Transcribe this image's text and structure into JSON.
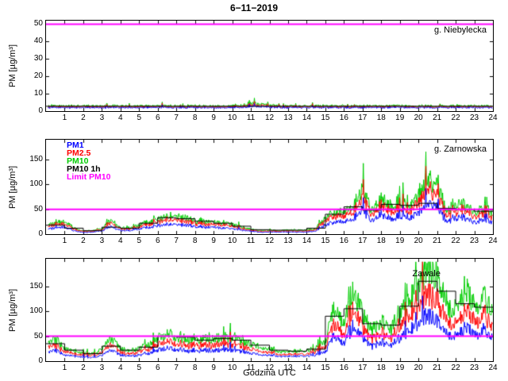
{
  "title": "6−11−2019",
  "xlabel": "Godzina UTC",
  "ylabel": "PM [µg/m³]",
  "colors": {
    "pm1": "#0000ff",
    "pm25": "#ff0000",
    "pm10": "#00cc00",
    "pm10_1h": "#000000",
    "limit": "#ff00ff"
  },
  "legend": [
    {
      "label": "PM1",
      "color": "#0000ff"
    },
    {
      "label": "PM2.5",
      "color": "#ff0000"
    },
    {
      "label": "PM10",
      "color": "#00cc00"
    },
    {
      "label": "PM10 1h",
      "color": "#000000"
    },
    {
      "label": "Limit PM10",
      "color": "#ff00ff"
    }
  ],
  "xticks": [
    1,
    2,
    3,
    4,
    5,
    6,
    7,
    8,
    9,
    10,
    11,
    12,
    13,
    14,
    15,
    16,
    17,
    18,
    19,
    20,
    21,
    22,
    23,
    24
  ],
  "chart_data": [
    {
      "type": "line",
      "station": "g. Niebylecka",
      "ylim": [
        0,
        52
      ],
      "yticks": [
        0,
        10,
        20,
        30,
        40,
        50
      ],
      "limit_value": 50,
      "anchor_step_hours": 0.5,
      "series": [
        {
          "name": "PM10",
          "color": "#00cc00",
          "values": [
            3,
            3,
            3,
            3,
            3,
            3,
            3,
            3,
            3,
            3,
            3,
            3,
            3,
            3,
            3,
            3,
            3,
            3,
            3,
            3,
            3,
            3.5,
            4.5,
            4,
            3.5,
            3,
            3,
            3,
            3,
            3,
            3,
            3,
            3,
            3,
            3,
            3,
            3,
            3,
            3,
            3,
            3,
            3,
            3,
            3,
            3,
            3,
            3,
            3,
            3
          ]
        },
        {
          "name": "PM2.5",
          "color": "#ff0000",
          "values": [
            2.5,
            2.5,
            2.5,
            2.5,
            2.5,
            2.5,
            2.5,
            2.5,
            2.5,
            2.5,
            2.5,
            2.5,
            2.5,
            2.5,
            2.5,
            2.5,
            2.5,
            2.5,
            2.5,
            2.5,
            2.5,
            2.8,
            3.5,
            3.2,
            2.8,
            2.5,
            2.5,
            2.5,
            2.5,
            2.5,
            2.5,
            2.5,
            2.5,
            2.5,
            2.5,
            2.5,
            2.5,
            2.5,
            2.5,
            2.5,
            2.5,
            2.5,
            2.5,
            2.5,
            2.5,
            2.5,
            2.5,
            2.5,
            2.5
          ]
        },
        {
          "name": "PM1",
          "color": "#0000ff",
          "values": [
            2,
            2,
            2,
            2,
            2,
            2,
            2,
            2,
            2,
            2,
            2,
            2,
            2,
            2,
            2,
            2,
            2,
            2,
            2,
            2,
            2,
            2.2,
            2.8,
            2.5,
            2.2,
            2,
            2,
            2,
            2,
            2,
            2,
            2,
            2,
            2,
            2,
            2,
            2,
            2,
            2,
            2,
            2,
            2,
            2,
            2,
            2,
            2,
            2,
            2,
            2
          ]
        }
      ],
      "pm10_1h_hourly": [
        2.8,
        2.8,
        2.8,
        2.8,
        2.8,
        2.8,
        2.8,
        2.8,
        2.8,
        2.8,
        2.8,
        2.8,
        2.8,
        2.8,
        2.8,
        2.8,
        2.8,
        2.8,
        2.8,
        2.8,
        2.8,
        2.8,
        2.8,
        2.8
      ]
    },
    {
      "type": "line",
      "station": "g. Zarnowska",
      "ylim": [
        0,
        190
      ],
      "yticks": [
        0,
        50,
        100,
        150
      ],
      "limit_value": 50,
      "anchor_step_hours": 0.5,
      "series": [
        {
          "name": "PM10",
          "color": "#00cc00",
          "values": [
            18,
            22,
            25,
            12,
            6,
            7,
            10,
            30,
            12,
            12,
            18,
            25,
            30,
            36,
            35,
            32,
            27,
            25,
            25,
            22,
            20,
            14,
            10,
            8,
            8,
            7,
            8,
            8,
            8,
            12,
            32,
            42,
            48,
            55,
            95,
            45,
            75,
            55,
            68,
            58,
            75,
            120,
            100,
            48,
            55,
            62,
            45,
            52,
            45
          ]
        },
        {
          "name": "PM2.5",
          "color": "#ff0000",
          "values": [
            14,
            18,
            20,
            10,
            5,
            6,
            8,
            24,
            10,
            10,
            14,
            20,
            24,
            29,
            28,
            26,
            22,
            20,
            20,
            18,
            16,
            11,
            8,
            6,
            6,
            6,
            6,
            6,
            6,
            10,
            26,
            34,
            38,
            44,
            76,
            36,
            60,
            44,
            54,
            46,
            60,
            96,
            80,
            38,
            44,
            50,
            36,
            42,
            36
          ]
        },
        {
          "name": "PM1",
          "color": "#0000ff",
          "values": [
            10,
            12,
            14,
            7,
            3,
            4,
            6,
            16,
            7,
            7,
            10,
            14,
            16,
            20,
            19,
            18,
            15,
            14,
            14,
            12,
            11,
            8,
            6,
            4,
            4,
            4,
            4,
            4,
            4,
            7,
            18,
            23,
            26,
            30,
            52,
            25,
            41,
            30,
            37,
            32,
            41,
            66,
            55,
            26,
            30,
            34,
            25,
            29,
            25
          ]
        }
      ],
      "pm10_1h_hourly": [
        18,
        12,
        7,
        14,
        12,
        22,
        33,
        31,
        26,
        22,
        16,
        9,
        8,
        8,
        12,
        40,
        55,
        48,
        60,
        58,
        62,
        52,
        50,
        46
      ]
    },
    {
      "type": "line",
      "station": "Zawale",
      "ylim": [
        0,
        205
      ],
      "yticks": [
        0,
        50,
        100,
        150
      ],
      "limit_value": 50,
      "anchor_step_hours": 0.5,
      "series": [
        {
          "name": "PM10",
          "color": "#00cc00",
          "values": [
            32,
            45,
            26,
            20,
            16,
            15,
            22,
            48,
            24,
            20,
            26,
            32,
            46,
            55,
            50,
            46,
            40,
            46,
            42,
            50,
            46,
            40,
            34,
            28,
            24,
            20,
            20,
            20,
            20,
            26,
            40,
            110,
            70,
            140,
            95,
            60,
            85,
            60,
            100,
            130,
            150,
            185,
            170,
            120,
            100,
            140,
            110,
            130,
            95
          ]
        },
        {
          "name": "PM2.5",
          "color": "#ff0000",
          "values": [
            23,
            32,
            19,
            14,
            12,
            11,
            16,
            35,
            17,
            14,
            19,
            23,
            33,
            40,
            36,
            33,
            29,
            33,
            30,
            36,
            33,
            29,
            24,
            20,
            17,
            14,
            14,
            14,
            14,
            19,
            29,
            79,
            50,
            101,
            68,
            43,
            61,
            43,
            72,
            94,
            108,
            133,
            122,
            86,
            72,
            101,
            79,
            94,
            68
          ]
        },
        {
          "name": "PM1",
          "color": "#0000ff",
          "values": [
            15,
            22,
            12,
            10,
            8,
            7,
            11,
            23,
            12,
            10,
            12,
            15,
            22,
            26,
            24,
            22,
            19,
            22,
            20,
            24,
            22,
            19,
            16,
            13,
            12,
            10,
            10,
            10,
            10,
            12,
            19,
            53,
            34,
            67,
            46,
            29,
            41,
            29,
            48,
            62,
            72,
            89,
            82,
            58,
            48,
            67,
            53,
            62,
            46
          ]
        }
      ],
      "pm10_1h_hourly": [
        35,
        22,
        15,
        30,
        22,
        28,
        50,
        48,
        42,
        45,
        42,
        32,
        22,
        20,
        24,
        90,
        105,
        75,
        72,
        110,
        160,
        140,
        115,
        108
      ]
    }
  ]
}
